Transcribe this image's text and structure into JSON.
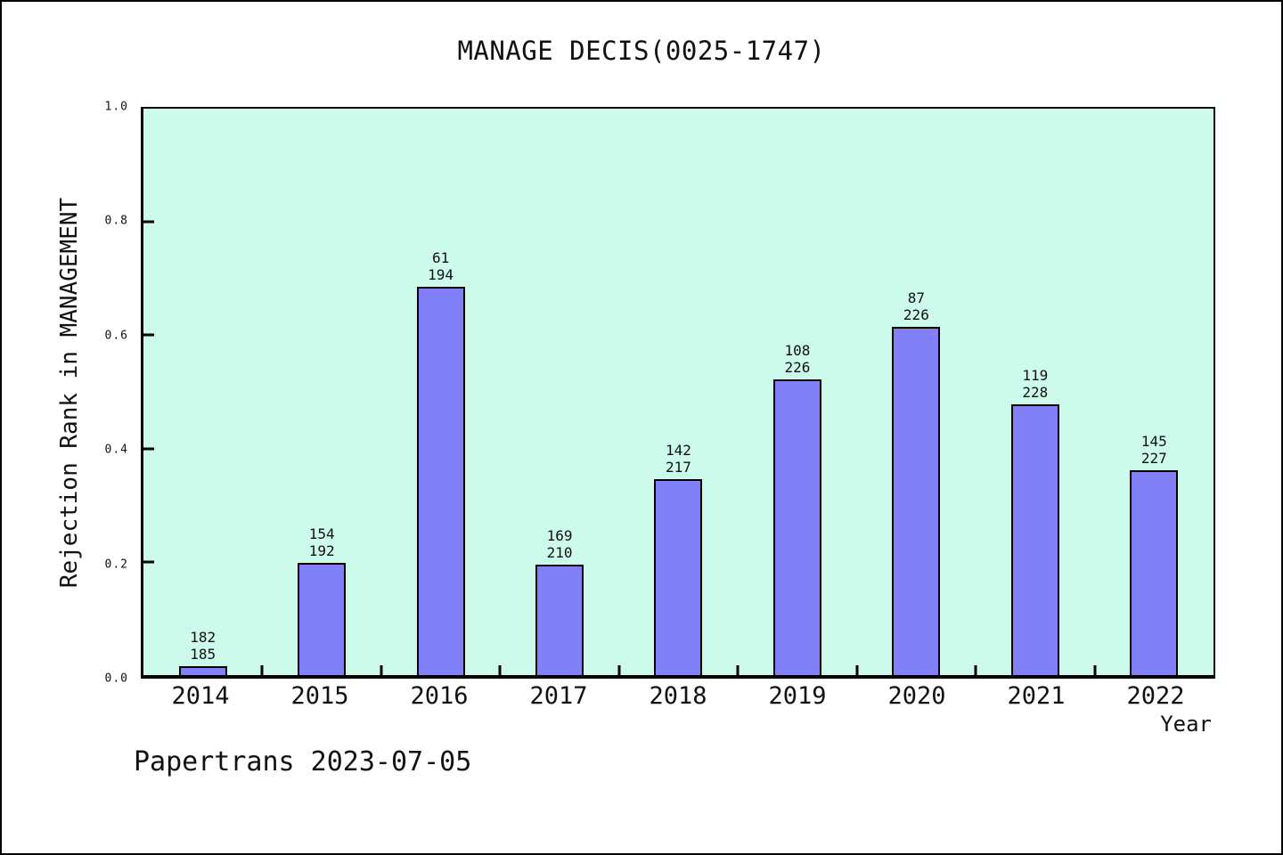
{
  "header": {
    "title": "MANAGE DECIS(0025-1747)"
  },
  "footer": {
    "text": "Papertrans 2023-07-05"
  },
  "colors": {
    "bar_fill": "#8180f8",
    "bar_border": "#000000",
    "plot_background": "#ccfbec",
    "page_background": "#ffffff",
    "text": "#111111"
  },
  "chart_data": {
    "type": "bar",
    "title": "MANAGE DECIS(0025-1747)",
    "xlabel": "Year",
    "ylabel": "Rejection Rank in MANAGEMENT",
    "ylim": [
      0.0,
      1.0
    ],
    "grid": false,
    "legend": "none",
    "yticks": [
      {
        "v": 0.0,
        "label": "0.0"
      },
      {
        "v": 0.2,
        "label": "0.2"
      },
      {
        "v": 0.4,
        "label": "0.4"
      },
      {
        "v": 0.6,
        "label": "0.6"
      },
      {
        "v": 0.8,
        "label": "0.8"
      },
      {
        "v": 1.0,
        "label": "1.0"
      }
    ],
    "categories": [
      "2014",
      "2015",
      "2016",
      "2017",
      "2018",
      "2019",
      "2020",
      "2021",
      "2022"
    ],
    "bars": [
      {
        "category": "2014",
        "rank": 182,
        "total": 185,
        "value": 0.0162
      },
      {
        "category": "2015",
        "rank": 154,
        "total": 192,
        "value": 0.1979
      },
      {
        "category": "2016",
        "rank": 61,
        "total": 194,
        "value": 0.6856
      },
      {
        "category": "2017",
        "rank": 169,
        "total": 210,
        "value": 0.1952
      },
      {
        "category": "2018",
        "rank": 142,
        "total": 217,
        "value": 0.3456
      },
      {
        "category": "2019",
        "rank": 108,
        "total": 226,
        "value": 0.5221
      },
      {
        "category": "2020",
        "rank": 87,
        "total": 226,
        "value": 0.615
      },
      {
        "category": "2021",
        "rank": 119,
        "total": 228,
        "value": 0.4781
      },
      {
        "category": "2022",
        "rank": 145,
        "total": 227,
        "value": 0.3612
      }
    ],
    "bar_label_format": "rank over total, two lines above each bar",
    "value_formula": "value = 1 - rank/total"
  }
}
